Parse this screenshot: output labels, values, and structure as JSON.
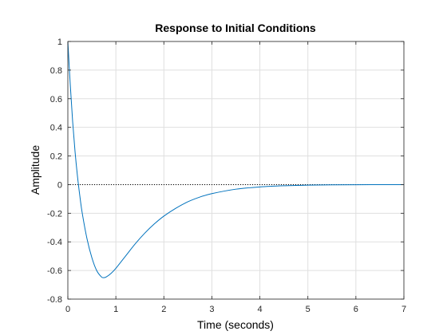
{
  "chart_data": {
    "type": "line",
    "title": "Response to Initial Conditions",
    "xlabel": "Time (seconds)",
    "ylabel": "Amplitude",
    "xlim": [
      0,
      7
    ],
    "ylim": [
      -0.8,
      1
    ],
    "xticks": [
      "0",
      "1",
      "2",
      "3",
      "4",
      "5",
      "6",
      "7"
    ],
    "yticks": [
      "1",
      "0.8",
      "0.6",
      "0.4",
      "0.2",
      "0",
      "-0.2",
      "-0.4",
      "-0.6",
      "-0.8"
    ],
    "grid": true,
    "legend": "none",
    "reference_line": {
      "y": 0,
      "style": "dotted"
    },
    "series": [
      {
        "color": "#0072BD",
        "x": [
          0,
          0.05,
          0.1,
          0.15,
          0.2,
          0.25,
          0.3,
          0.4,
          0.5,
          0.6,
          0.7,
          0.75,
          0.8,
          0.9,
          1.0,
          1.2,
          1.4,
          1.6,
          1.8,
          2.0,
          2.25,
          2.5,
          2.75,
          3.0,
          3.5,
          4.0,
          4.5,
          5.0,
          5.5,
          6.0,
          6.5,
          7.0
        ],
        "y": [
          1.0,
          0.7,
          0.44,
          0.23,
          0.06,
          -0.08,
          -0.2,
          -0.38,
          -0.51,
          -0.6,
          -0.645,
          -0.65,
          -0.645,
          -0.62,
          -0.585,
          -0.5,
          -0.415,
          -0.34,
          -0.275,
          -0.22,
          -0.165,
          -0.12,
          -0.087,
          -0.063,
          -0.032,
          -0.016,
          -0.008,
          -0.004,
          -0.002,
          -0.001,
          -0.0005,
          0.0
        ]
      }
    ]
  }
}
